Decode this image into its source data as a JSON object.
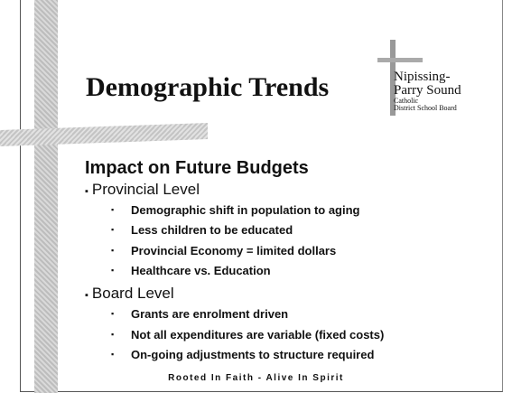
{
  "slide": {
    "title": "Demographic Trends",
    "logo": {
      "lines": [
        "Nipissing-",
        "Parry Sound",
        "Catholic",
        "District School Board"
      ]
    },
    "heading": "Impact on Future Budgets",
    "sections": [
      {
        "label": "Provincial Level",
        "items": [
          "Demographic shift in population to aging",
          "Less children to be educated",
          "Provincial Economy = limited dollars",
          "Healthcare vs. Education"
        ]
      },
      {
        "label": "Board Level",
        "items": [
          "Grants are enrolment driven",
          "Not all expenditures are variable (fixed costs)",
          "On-going adjustments to structure required"
        ]
      }
    ],
    "footer": "Rooted In Faith - Alive In Spirit"
  }
}
